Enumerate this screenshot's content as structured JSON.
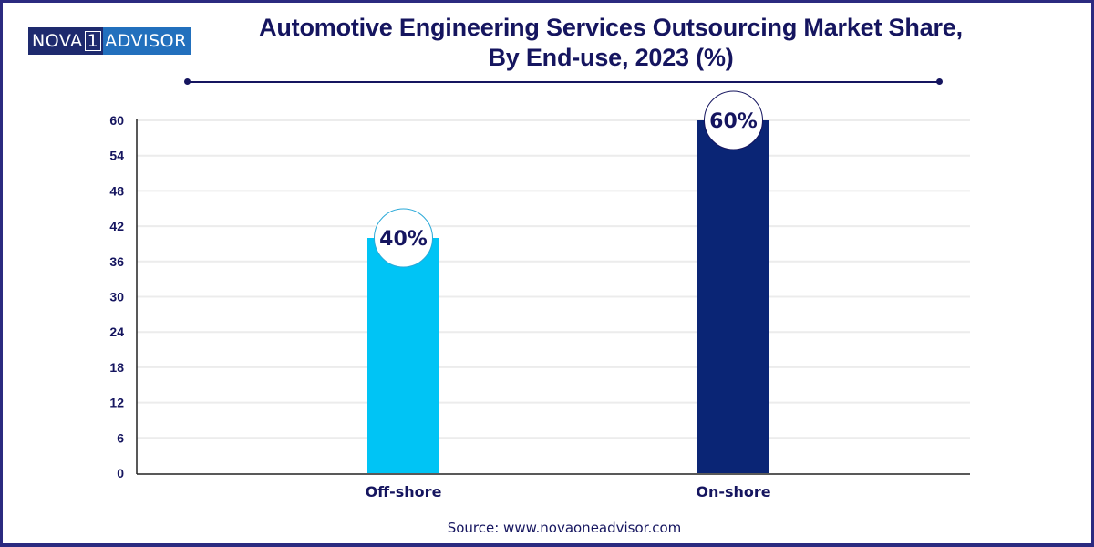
{
  "brand": {
    "logo_left": "NOVA",
    "logo_mid": "1",
    "logo_right": "ADVISOR"
  },
  "colors": {
    "navy": "#15155f",
    "offshore": "#00c4f5",
    "onshore": "#0a2575",
    "border": "#2b2a80"
  },
  "source": "Source: www.novaoneadvisor.com",
  "chart_data": {
    "type": "bar",
    "title": "Automotive Engineering Services Outsourcing Market Share,",
    "subtitle": "By End-use, 2023 (%)",
    "xlabel": "",
    "ylabel": "",
    "categories": [
      "Off-shore",
      "On-shore"
    ],
    "values": [
      40,
      60
    ],
    "data_labels": [
      "40%",
      "60%"
    ],
    "bar_colors": [
      "#00c4f5",
      "#0a2575"
    ],
    "ylim": [
      0,
      60
    ],
    "yticks": [
      0,
      6,
      12,
      18,
      24,
      30,
      36,
      42,
      48,
      54,
      60
    ],
    "grid": true,
    "legend": "none"
  }
}
